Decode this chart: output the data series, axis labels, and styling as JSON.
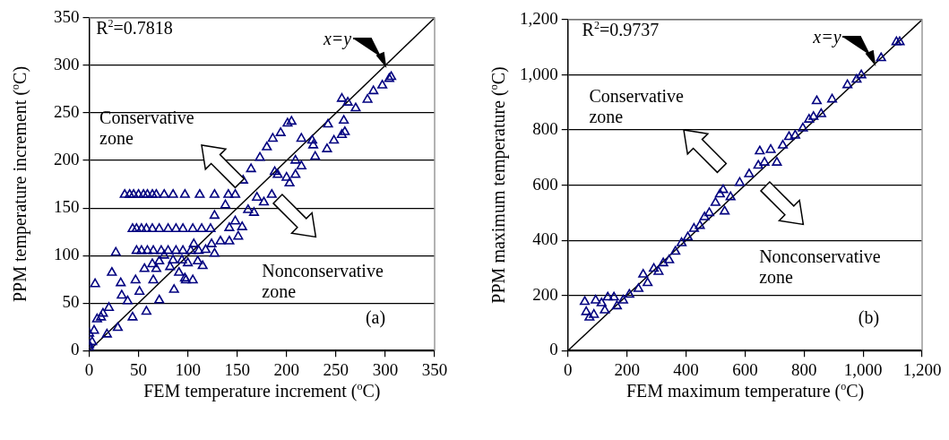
{
  "chart_data": [
    {
      "type": "scatter",
      "xlabel": "FEM temperature increment ($^{o}$C)",
      "ylabel": "PPM  temperature increment ($^{o}$C)",
      "xlim": [
        0,
        350
      ],
      "ylim": [
        0,
        350
      ],
      "xticks": [
        0,
        50,
        100,
        150,
        200,
        250,
        300,
        350
      ],
      "yticks": [
        0,
        50,
        100,
        150,
        200,
        250,
        300,
        350
      ],
      "grid": "y",
      "marker": "triangle",
      "annotations": [
        "R$^{2}$=0.7818",
        {
          "text": "x=y",
          "x": 300,
          "y": 300
        },
        "Conservative zone",
        "Nonconservative zone",
        "(a)"
      ],
      "series": [
        {
          "type": "scatter",
          "color": "#000080",
          "x": [
            36,
            41,
            45,
            50,
            55,
            59,
            64,
            68,
            76,
            85,
            97,
            112,
            127,
            141,
            148,
            44,
            48,
            53,
            58,
            64,
            71,
            80,
            88,
            95,
            105,
            114,
            123,
            48,
            53,
            59,
            65,
            73,
            80,
            88,
            95,
            103,
            111,
            6,
            27,
            23,
            32,
            47,
            65,
            33,
            39,
            51,
            20,
            14,
            8,
            5,
            18,
            29,
            44,
            58,
            71,
            86,
            56,
            68,
            82,
            91,
            98,
            105,
            115,
            127,
            124,
            127,
            138,
            156,
            164,
            173,
            180,
            186,
            194,
            201,
            205,
            142,
            148,
            155,
            161,
            167,
            170,
            177,
            185,
            188,
            191,
            200,
            203,
            209,
            209,
            215,
            215,
            226,
            227,
            229,
            241,
            242,
            248,
            256,
            258,
            259,
            256,
            262,
            270,
            282,
            288,
            297,
            304,
            306,
            142,
            151,
            133,
            118,
            106,
            110,
            100,
            97,
            94,
            85,
            76,
            71,
            64,
            0,
            0,
            3,
            0,
            12
          ],
          "values": [
            164,
            164,
            164,
            164,
            164,
            164,
            164,
            164,
            164,
            164,
            164,
            164,
            164,
            164,
            164,
            128,
            128,
            128,
            128,
            128,
            128,
            128,
            128,
            128,
            128,
            128,
            128,
            105,
            105,
            105,
            105,
            105,
            105,
            105,
            105,
            105,
            105,
            70,
            103,
            82,
            71,
            74,
            74,
            58,
            52,
            62,
            45,
            39,
            33,
            21,
            17,
            24,
            35,
            41,
            53,
            64,
            86,
            86,
            88,
            82,
            74,
            74,
            89,
            102,
            112,
            142,
            153,
            179,
            191,
            203,
            214,
            223,
            229,
            239,
            241,
            129,
            136,
            130,
            148,
            145,
            161,
            156,
            164,
            188,
            185,
            182,
            176,
            185,
            200,
            194,
            223,
            221,
            216,
            204,
            212,
            238,
            221,
            227,
            242,
            230,
            265,
            261,
            255,
            264,
            273,
            279,
            286,
            288,
            115,
            120,
            115,
            106,
            112,
            94,
            92,
            76,
            95,
            95,
            100,
            94,
            91,
            6,
            3,
            9,
            18,
            35
          ]
        },
        {
          "type": "line",
          "color": "#000000",
          "marker": "none",
          "x": [
            0,
            350
          ],
          "values": [
            0,
            350
          ]
        }
      ]
    },
    {
      "type": "scatter",
      "xlabel": "FEM maximum temperature ($^{o}$C)",
      "ylabel": "PPM maximum temperature ($^{o}$C)",
      "xlim": [
        0,
        1200
      ],
      "ylim": [
        0,
        1200
      ],
      "xticks": [
        0,
        {
          "value": 200,
          "label": "200"
        },
        {
          "value": 400,
          "label": "400"
        },
        {
          "value": 600,
          "label": "600"
        },
        {
          "value": 800,
          "label": "800"
        },
        {
          "value": 1000,
          "label": "1,000"
        },
        {
          "value": 1200,
          "label": "1,200"
        }
      ],
      "yticks": [
        0,
        {
          "value": 200,
          "label": "200"
        },
        {
          "value": 400,
          "label": "400"
        },
        {
          "value": 600,
          "label": "600"
        },
        {
          "value": 800,
          "label": "800"
        },
        {
          "value": 1000,
          "label": "1,000"
        },
        {
          "value": 1200,
          "label": "1,200"
        }
      ],
      "grid": "y",
      "marker": "triangle",
      "annotations": [
        "R$^{2}$=0.9737",
        {
          "text": "x=y",
          "x": 1040,
          "y": 1040
        },
        "Conservative zone",
        "Nonconservative zone",
        "(b)"
      ],
      "series": [
        {
          "type": "scatter",
          "color": "#000080",
          "x": [
            57,
            62,
            73,
            94,
            88,
            114,
            135,
            125,
            156,
            166,
            187,
            208,
            239,
            255,
            270,
            291,
            307,
            323,
            343,
            364,
            385,
            406,
            427,
            447,
            463,
            479,
            500,
            515,
            526,
            531,
            551,
            582,
            614,
            645,
            650,
            666,
            687,
            708,
            728,
            749,
            770,
            796,
            817,
            832,
            843,
            858,
            895,
            947,
            978,
            994,
            1061,
            1113,
            1124
          ],
          "values": [
            177,
            140,
            120,
            182,
            130,
            172,
            193,
            146,
            193,
            161,
            182,
            203,
            224,
            276,
            245,
            297,
            286,
            317,
            328,
            359,
            390,
            411,
            442,
            453,
            484,
            499,
            536,
            567,
            583,
            505,
            557,
            609,
            640,
            671,
            723,
            682,
            728,
            682,
            744,
            775,
            780,
            806,
            838,
            848,
            905,
            858,
            911,
            963,
            983,
            999,
            1061,
            1119,
            1119
          ]
        },
        {
          "type": "line",
          "color": "#000000",
          "marker": "none",
          "x": [
            0,
            1200
          ],
          "values": [
            0,
            1200
          ]
        }
      ]
    }
  ]
}
